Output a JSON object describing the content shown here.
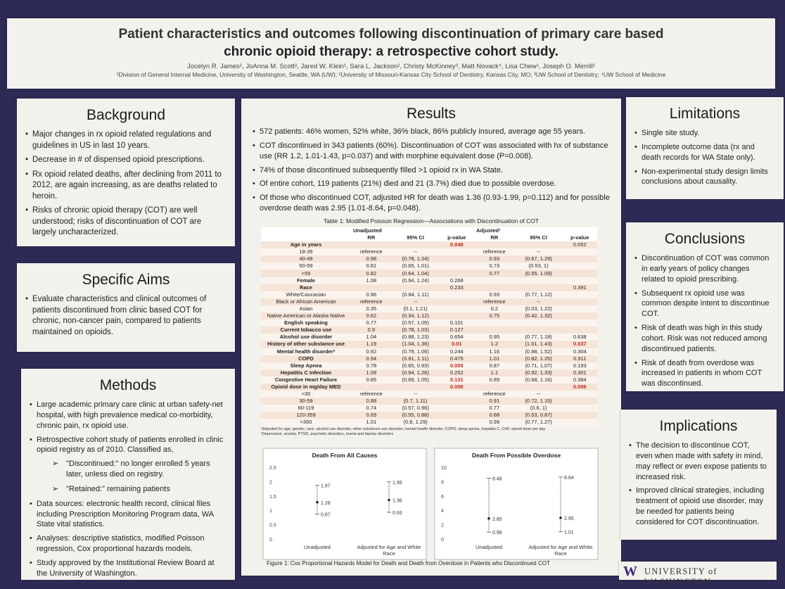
{
  "title": {
    "line1": "Patient characteristics and outcomes following discontinuation of primary care based",
    "line2": "chronic opioid therapy: a retrospective cohort study.",
    "authors": "Jocelyn R. James¹, JoAnna M. Scott², Jared W. Klein¹, Sara L. Jackson¹, Christy McKinney³, Matt Novack⁴, Lisa Chew¹, Joseph O. Merrill¹",
    "affiliations": "¹Division of General Internal Medicine, University of Washington, Seattle, WA (UW); ²University of Missouri-Kansas City School of Dentistry, Kansas City, MO; ³UW School of Dentistry; ⁴UW School of Medicine"
  },
  "background": {
    "heading": "Background",
    "items": [
      "Major changes in rx opioid related regulations and guidelines in US in last 10 years.",
      "Decrease in # of dispensed opioid prescriptions.",
      "Rx opioid related deaths, after declining from 2011 to 2012, are again increasing, as are deaths related to heroin.",
      "Risks of chronic opioid therapy (COT) are well understood; risks of discontinuation of COT are largely uncharacterized."
    ]
  },
  "aims": {
    "heading": "Specific Aims",
    "items": [
      "Evaluate characteristics and clinical outcomes of patients discontinued from clinic based COT for chronic, non-cancer pain, compared to patients maintained on opioids."
    ]
  },
  "methods": {
    "heading": "Methods",
    "item1": "Large academic primary care clinic at urban safety-net hospital, with high prevalence medical co-morbidity, chronic pain, rx opioid use.",
    "item2": "Retrospective cohort study of patients enrolled in clinic opioid registry as of 2010. Classified as,",
    "sub1": "\"Discontinued:\"  no longer enrolled 5 years later, unless died on registry.",
    "sub2": "\"Retained:\" remaining patients",
    "item3": "Data sources: electronic health record, clinical files including Prescription Monitoring Program data, WA State vital statistics.",
    "item4": "Analyses: descriptive statistics, modified Poisson regression, Cox proportional hazards models.",
    "item5": "Study approved by the Institutional Review Board at the University of Washington."
  },
  "results": {
    "heading": "Results",
    "items": [
      "572 patients: 46% women, 52% white, 36% black, 86% publicly insured, average age 55 years.",
      "COT discontinued in 343 patients (60%). Discontinuation of COT was associated with hx of substance use (RR 1.2, 1.01-1.43, p=0.037) and with morphine equivalent dose (P=0.008).",
      "74% of those discontinued subsequently filled >1 opioid rx in WA State.",
      "Of entire cohort, 119 patients (21%) died and 21 (3.7%) died due to possible overdose.",
      "Of those who discontinued COT, adjusted HR for death was 1.36 (0.93-1.99, p=0.112) and for possible overdose death was 2.95 (1.01-8.64, p=0.048)."
    ],
    "table_title": "Table 1: Modified Poisson Regression—Associations with Discontinuation of COT",
    "table_group_unadj": "Unadjusted",
    "table_group_adj": "Adjusted¹",
    "table_cols": [
      "",
      "RR",
      "95% CI",
      "p-value",
      "RR",
      "95% CI",
      "p-value"
    ],
    "table_rows": [
      [
        "Age in years",
        "",
        "",
        "0.048",
        "",
        "",
        "0.052"
      ],
      [
        "18-39",
        "reference",
        "--",
        "",
        "reference",
        "--",
        ""
      ],
      [
        "40-49",
        "0.98",
        "(0.78, 1.24)",
        "",
        "0.93",
        "(0.67, 1.29)",
        ""
      ],
      [
        "50-59",
        "0.81",
        "(0.65, 1.01)",
        "",
        "0.73",
        "(0.53, 1)",
        ""
      ],
      [
        ">59",
        "0.82",
        "(0.64, 1.04)",
        "",
        "0.77",
        "(0.55, 1.09)",
        ""
      ],
      [
        "Female",
        "1.08",
        "(0.94, 1.24)",
        "0.268",
        "",
        "",
        ""
      ],
      [
        "Race",
        "",
        "",
        "0.233",
        "",
        "",
        "0.391"
      ],
      [
        "White/Caucasian",
        "0.96",
        "(0.84, 1.11)",
        "",
        "0.93",
        "(0.77, 1.12)",
        ""
      ],
      [
        "Black or African American",
        "reference",
        "--",
        "",
        "reference",
        "--",
        ""
      ],
      [
        "Asian",
        "0.35",
        "(0.1, 1.21)",
        "",
        "0.2",
        "(0.03, 1.22)",
        ""
      ],
      [
        "Native American or Alaska Native",
        "0.62",
        "(0.34, 1.12)",
        "",
        "0.75",
        "(0.42, 1.32)",
        ""
      ],
      [
        "English speaking",
        "0.77",
        "(0.57, 1.05)",
        "0.101",
        "",
        "",
        ""
      ],
      [
        "Current tobacco use",
        "0.9",
        "(0.78, 1.03)",
        "0.127",
        "",
        "",
        ""
      ],
      [
        "Alcohol use disorder",
        "1.04",
        "(0.88, 1.23)",
        "0.654",
        "0.95",
        "(0.77, 1.18)",
        "0.638"
      ],
      [
        "History of other substance use",
        "1.19",
        "(1.04, 1.36)",
        "0.01",
        "1.2",
        "(1.01, 1.43)",
        "0.037"
      ],
      [
        "Mental health disorder²",
        "0.92",
        "(0.79, 1.06)",
        "0.244",
        "1.16",
        "(0.88, 1.52)",
        "0.304"
      ],
      [
        "COPD",
        "0.94",
        "(0.81, 1.11)",
        "0.475",
        "1.01",
        "(0.82, 1.25)",
        "0.911"
      ],
      [
        "Sleep Apnea",
        "0.78",
        "(0.65, 0.93)",
        "0.005",
        "0.87",
        "(0.71, 1.07)",
        "0.193"
      ],
      [
        "Hepatitis C Infection",
        "1.09",
        "(0.94, 1.26)",
        "0.252",
        "1.1",
        "(0.92, 1.33)",
        "0.301"
      ],
      [
        "Congestive Heart Failure",
        "0.85",
        "(0.69, 1.05)",
        "0.131",
        "0.89",
        "(0.68, 1.16)",
        "0.384"
      ],
      [
        "Opioid dose in mg/day MED",
        "",
        "",
        "0.006",
        "",
        "",
        "0.008"
      ],
      [
        "<30",
        "reference",
        "--",
        "",
        "reference",
        "--",
        ""
      ],
      [
        "30-59",
        "0.88",
        "(0.7, 1.11)",
        "",
        "0.91",
        "(0.72, 1.15)",
        ""
      ],
      [
        "60-119",
        "0.74",
        "(0.57, 0.96)",
        "",
        "0.77",
        "(0.6, 1)",
        ""
      ],
      [
        "120-359",
        "0.69",
        "(0.55, 0.88)",
        "",
        "0.68",
        "(0.53, 0.87)",
        ""
      ],
      [
        ">360",
        "1.01",
        "(0.8, 1.29)",
        "",
        "0.99",
        "(0.77, 1.27)",
        ""
      ]
    ],
    "table_bold_rows": [
      0,
      5,
      6,
      11,
      12,
      13,
      14,
      15,
      16,
      17,
      18,
      19,
      20
    ],
    "table_red_cells": [
      "0,3",
      "14,3",
      "14,6",
      "17,3",
      "19,3",
      "20,3",
      "20,6"
    ],
    "table_foot1": "¹Adjusted for age, gender, race, alcohol use disorder, other substance use disorder, mental health disorder, COPD, sleep apnea, hepatitis C, CHF, opioid dose per day",
    "table_foot2": "²Depression, anxiety, PTSD, psychotic disorders, mania and bipolar disorders",
    "figure_caption": "Figure 1: Cox Proportional Hazards Model for Death and Death from Overdose in Patients who Discontinued COT"
  },
  "chart_data": [
    {
      "type": "scatter",
      "title": "Death From All Causes",
      "categories": [
        "Unadjusted",
        "Adjusted for Age and White Race"
      ],
      "estimates": [
        1.28,
        1.36
      ],
      "lower": [
        0.87,
        0.93
      ],
      "upper": [
        1.87,
        1.99
      ],
      "ylim": [
        0,
        2.5
      ],
      "yticks": [
        "0",
        "0.5",
        "1",
        "1.5",
        "2",
        "2.5"
      ]
    },
    {
      "type": "scatter",
      "title": "Death From Possible Overdose",
      "categories": [
        "Unadjusted",
        "Adjusted for Age and White Race"
      ],
      "estimates": [
        2.85,
        2.95
      ],
      "lower": [
        0.96,
        1.01
      ],
      "upper": [
        8.48,
        8.64
      ],
      "ylim": [
        0,
        10
      ],
      "yticks": [
        "0",
        "2",
        "4",
        "6",
        "8",
        "10"
      ]
    }
  ],
  "limitations": {
    "heading": "Limitations",
    "items": [
      "Single site study.",
      "Incomplete outcome data (rx and death records for WA State only).",
      "Non-experimental study design limits conclusions about causality."
    ]
  },
  "conclusions": {
    "heading": "Conclusions",
    "items": [
      "Discontinuation of COT was common in early years of policy changes related to opioid prescribing.",
      "Subsequent rx opioid use was common despite intent to discontinue COT.",
      "Risk of death was high in this study cohort. Risk was not reduced among discontinued patients.",
      "Risk of death from overdose was increased in patients in whom COT was discontinued."
    ]
  },
  "implications": {
    "heading": "Implications",
    "items": [
      "The decision to discontinue COT, even when made with safety in mind, may reflect or even expose patients to increased risk.",
      "Improved clinical strategies, including treatment of opioid use disorder, may be needed for patients being considered for COT discontinuation."
    ]
  },
  "logo": {
    "mark": "W",
    "text": "UNIVERSITY of WASHINGTON"
  },
  "colors": {
    "background": "#2d2a55",
    "panel": "#f3f1ec",
    "table_row": "#f6e4d8",
    "highlight": "#c0271e",
    "brand": "#3b2a74"
  }
}
